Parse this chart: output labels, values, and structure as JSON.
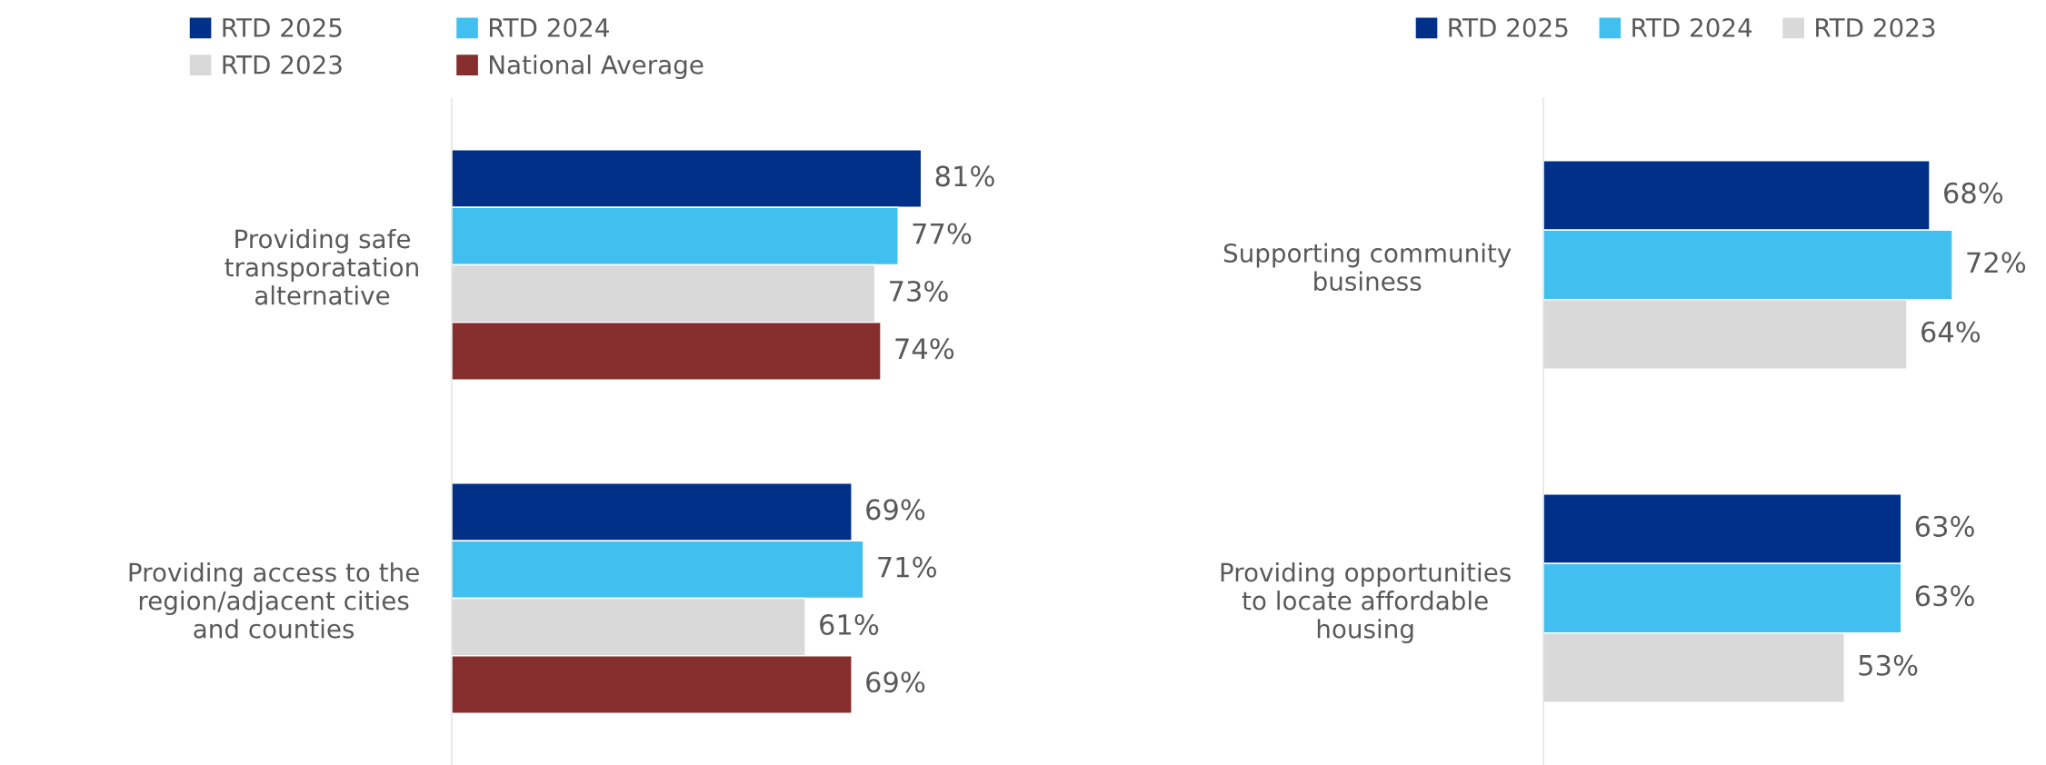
{
  "chart_data": [
    {
      "type": "bar",
      "orientation": "horizontal",
      "categories": [
        "Providing safe\ntransporatation\nalternative",
        "Providing access to the\nregion/adjacent cities\nand counties"
      ],
      "legend": "top",
      "grid": false,
      "tick_labels": "y",
      "series": [
        {
          "name": "RTD 2025",
          "color": "#003087",
          "values": [
            81,
            69
          ],
          "value_labels": [
            "81%",
            "69%"
          ]
        },
        {
          "name": "RTD 2024",
          "color": "#41c0f0",
          "values": [
            77,
            71
          ],
          "value_labels": [
            "77%",
            "71%"
          ]
        },
        {
          "name": "RTD 2023",
          "color": "#d9d9d9",
          "values": [
            73,
            61
          ],
          "value_labels": [
            "73%",
            "61%"
          ]
        },
        {
          "name": "National Average",
          "color": "#862d2d",
          "values": [
            74,
            69
          ],
          "value_labels": [
            "74%",
            "69%"
          ]
        }
      ]
    },
    {
      "type": "bar",
      "orientation": "horizontal",
      "categories": [
        "Supporting community\nbusiness",
        "Providing opportunities\nto locate affordable\nhousing"
      ],
      "legend": "top",
      "grid": false,
      "tick_labels": "y",
      "series": [
        {
          "name": "RTD 2025",
          "color": "#003087",
          "values": [
            68,
            63
          ],
          "value_labels": [
            "68%",
            "63%"
          ]
        },
        {
          "name": "RTD 2024",
          "color": "#41c0f0",
          "values": [
            72,
            63
          ],
          "value_labels": [
            "72%",
            "63%"
          ]
        },
        {
          "name": "RTD 2023",
          "color": "#d9d9d9",
          "values": [
            64,
            53
          ],
          "value_labels": [
            "64%",
            "53%"
          ]
        }
      ]
    }
  ]
}
